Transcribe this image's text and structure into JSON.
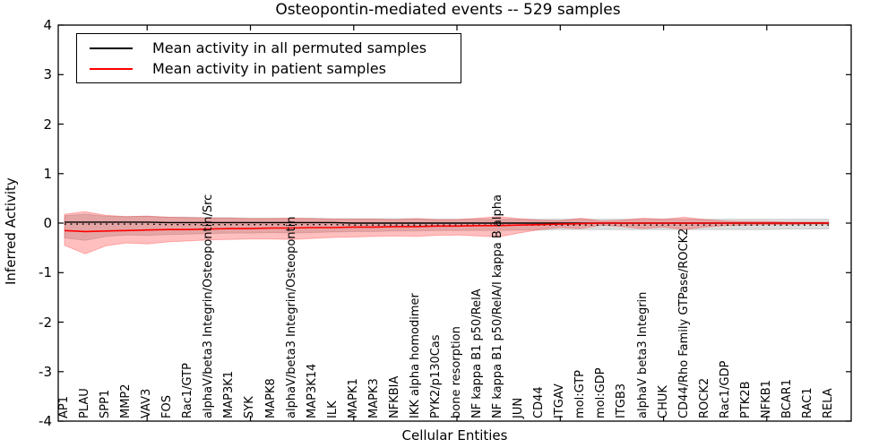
{
  "title": "Osteopontin-mediated events -- 529 samples",
  "legend": {
    "entries": [
      {
        "label": "Mean activity in all permuted samples",
        "color": "#000000"
      },
      {
        "label": "Mean activity in patient samples",
        "color": "#ff0000"
      }
    ],
    "position": "upper left"
  },
  "colors": {
    "permuted_line": "#000000",
    "patient_line": "#ff0000",
    "permuted_band": "rgba(128,128,128,0.28)",
    "patient_band": "rgba(255,0,0,0.25)",
    "axis": "#000000",
    "background": "#ffffff"
  },
  "chart_data": {
    "type": "line",
    "title": "Osteopontin-mediated events -- 529 samples",
    "xlabel": "Cellular Entities",
    "ylabel": "Inferred Activity",
    "ylim": [
      -4,
      4
    ],
    "grid": false,
    "legend_position": "upper left",
    "ytick_values": [
      4,
      3,
      2,
      1,
      0,
      -1,
      -2,
      -3,
      -4
    ],
    "ytick_labels": [
      "4",
      "3",
      "2",
      "1",
      "0",
      "-1",
      "-2",
      "-3",
      "-4"
    ],
    "x_tick_indices": [
      4,
      9,
      14,
      19,
      24,
      29,
      34
    ],
    "categories": [
      "AP1",
      "PLAU",
      "SPP1",
      "MMP2",
      "VAV3",
      "FOS",
      "Rac1/GTP",
      "alphaV/beta3 Integrin/Osteopontin/Src",
      "MAP3K1",
      "SYK",
      "MAPK8",
      "alphaV/beta3 Integrin/Osteopontin",
      "MAP3K14",
      "ILK",
      "MAPK1",
      "MAPK3",
      "NFKBIA",
      "IKK alpha homodimer",
      "PYK2/p130Cas",
      "bone resorption",
      "NF kappa B1 p50/RelA",
      "NF kappa B1 p50/RelA/I kappa B alpha",
      "JUN",
      "CD44",
      "ITGAV",
      "mol:GTP",
      "mol:GDP",
      "ITGB3",
      "alphaV beta3 Integrin",
      "CHUK",
      "CD44/Rho Family GTPase/ROCK2",
      "ROCK2",
      "Rac1/GDP",
      "PTK2B",
      "NFKB1",
      "BCAR1",
      "RAC1",
      "RELA"
    ],
    "series": [
      {
        "name": "Permuted samples band",
        "role": "permuted_band",
        "type": "band",
        "color": "rgba(128,128,128,0.28)",
        "hi": [
          0.15,
          0.18,
          0.14,
          0.13,
          0.14,
          0.12,
          0.12,
          0.11,
          0.11,
          0.1,
          0.1,
          0.1,
          0.1,
          0.09,
          0.09,
          0.09,
          0.09,
          0.09,
          0.08,
          0.08,
          0.08,
          0.08,
          0.08,
          0.08,
          0.08,
          0.08,
          0.08,
          0.08,
          0.08,
          0.08,
          0.08,
          0.08,
          0.08,
          0.08,
          0.08,
          0.08,
          0.08,
          0.08
        ],
        "lo": [
          -0.3,
          -0.35,
          -0.27,
          -0.24,
          -0.25,
          -0.23,
          -0.22,
          -0.21,
          -0.2,
          -0.2,
          -0.19,
          -0.2,
          -0.19,
          -0.18,
          -0.17,
          -0.17,
          -0.16,
          -0.16,
          -0.15,
          -0.15,
          -0.15,
          -0.15,
          -0.14,
          -0.14,
          -0.13,
          -0.13,
          -0.13,
          -0.13,
          -0.13,
          -0.13,
          -0.13,
          -0.13,
          -0.13,
          -0.13,
          -0.13,
          -0.12,
          -0.12,
          -0.12
        ]
      },
      {
        "name": "Patient samples band",
        "role": "patient_band",
        "type": "band",
        "color": "rgba(255,0,0,0.25)",
        "hi": [
          0.18,
          0.23,
          0.16,
          0.13,
          0.14,
          0.12,
          0.11,
          0.1,
          0.1,
          0.09,
          0.09,
          0.1,
          0.09,
          0.08,
          0.08,
          0.08,
          0.07,
          0.09,
          0.07,
          0.07,
          0.1,
          0.13,
          0.09,
          0.06,
          0.05,
          0.1,
          0.04,
          0.06,
          0.1,
          0.08,
          0.12,
          0.07,
          0.04,
          0.03,
          0.03,
          0.02,
          0.02,
          0.02
        ],
        "lo": [
          -0.45,
          -0.62,
          -0.46,
          -0.4,
          -0.42,
          -0.38,
          -0.36,
          -0.34,
          -0.33,
          -0.32,
          -0.32,
          -0.33,
          -0.31,
          -0.29,
          -0.28,
          -0.27,
          -0.26,
          -0.27,
          -0.25,
          -0.24,
          -0.26,
          -0.28,
          -0.2,
          -0.13,
          -0.09,
          -0.11,
          -0.04,
          -0.07,
          -0.11,
          -0.08,
          -0.13,
          -0.08,
          -0.05,
          -0.04,
          -0.03,
          -0.03,
          -0.02,
          -0.02
        ]
      },
      {
        "name": "Mean activity in all permuted samples",
        "role": "permuted_mean",
        "type": "line",
        "style": "solid",
        "color": "#000000",
        "values": [
          0.02,
          0.02,
          0.02,
          0.02,
          0.02,
          0.01,
          0.01,
          0.01,
          0.01,
          0.01,
          0.01,
          0.01,
          0.01,
          0.01,
          0,
          0,
          0,
          0,
          0,
          0,
          0,
          0,
          0,
          0,
          0,
          0,
          0,
          0,
          0,
          0,
          0,
          0,
          0,
          0,
          0,
          0,
          0,
          0
        ]
      },
      {
        "name": "Permuted dotted reference",
        "role": "dotted_reference",
        "type": "line",
        "style": "dotted",
        "color": "#000000",
        "values": [
          -0.02,
          -0.02,
          -0.02,
          -0.02,
          -0.02,
          -0.03,
          -0.03,
          -0.03,
          -0.03,
          -0.03,
          -0.03,
          -0.03,
          -0.03,
          -0.03,
          -0.04,
          -0.04,
          -0.04,
          -0.04,
          -0.04,
          -0.04,
          -0.04,
          -0.04,
          -0.04,
          -0.04,
          -0.04,
          -0.04,
          -0.04,
          -0.04,
          -0.04,
          -0.04,
          -0.04,
          -0.04,
          -0.04,
          -0.04,
          -0.04,
          -0.04,
          -0.04,
          -0.04
        ]
      },
      {
        "name": "Mean activity in patient samples",
        "role": "patient_mean",
        "type": "line",
        "style": "solid",
        "color": "#ff0000",
        "values": [
          -0.15,
          -0.17,
          -0.16,
          -0.15,
          -0.14,
          -0.13,
          -0.13,
          -0.12,
          -0.11,
          -0.11,
          -0.1,
          -0.1,
          -0.09,
          -0.09,
          -0.08,
          -0.08,
          -0.07,
          -0.07,
          -0.06,
          -0.06,
          -0.05,
          -0.05,
          -0.04,
          -0.03,
          -0.02,
          -0.01,
          0,
          0,
          0,
          0,
          0,
          0,
          0,
          0,
          0,
          0,
          0,
          0
        ]
      }
    ]
  }
}
